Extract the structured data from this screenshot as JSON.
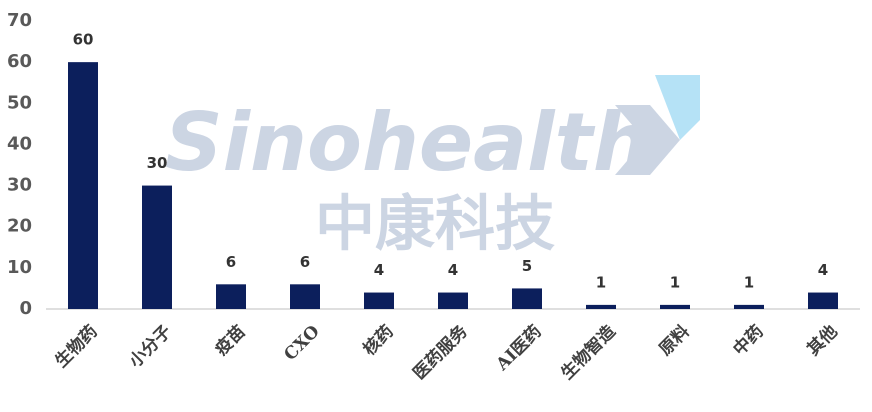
{
  "chart_data": {
    "type": "bar",
    "watermark": {
      "text": "Sinohealth",
      "subtext": "中康科技"
    },
    "categories": [
      "生物药",
      "小分子",
      "疫苗",
      "CXO",
      "核药",
      "医药服务",
      "AI医药",
      "生物智造",
      "原料",
      "中药",
      "其他"
    ],
    "values": [
      60,
      30,
      6,
      6,
      4,
      4,
      5,
      1,
      1,
      1,
      4
    ],
    "color": "#0c1f5c",
    "ylim": [
      0,
      70
    ],
    "yticks": [
      0,
      10,
      20,
      30,
      40,
      50,
      60,
      70
    ],
    "grid": false
  }
}
